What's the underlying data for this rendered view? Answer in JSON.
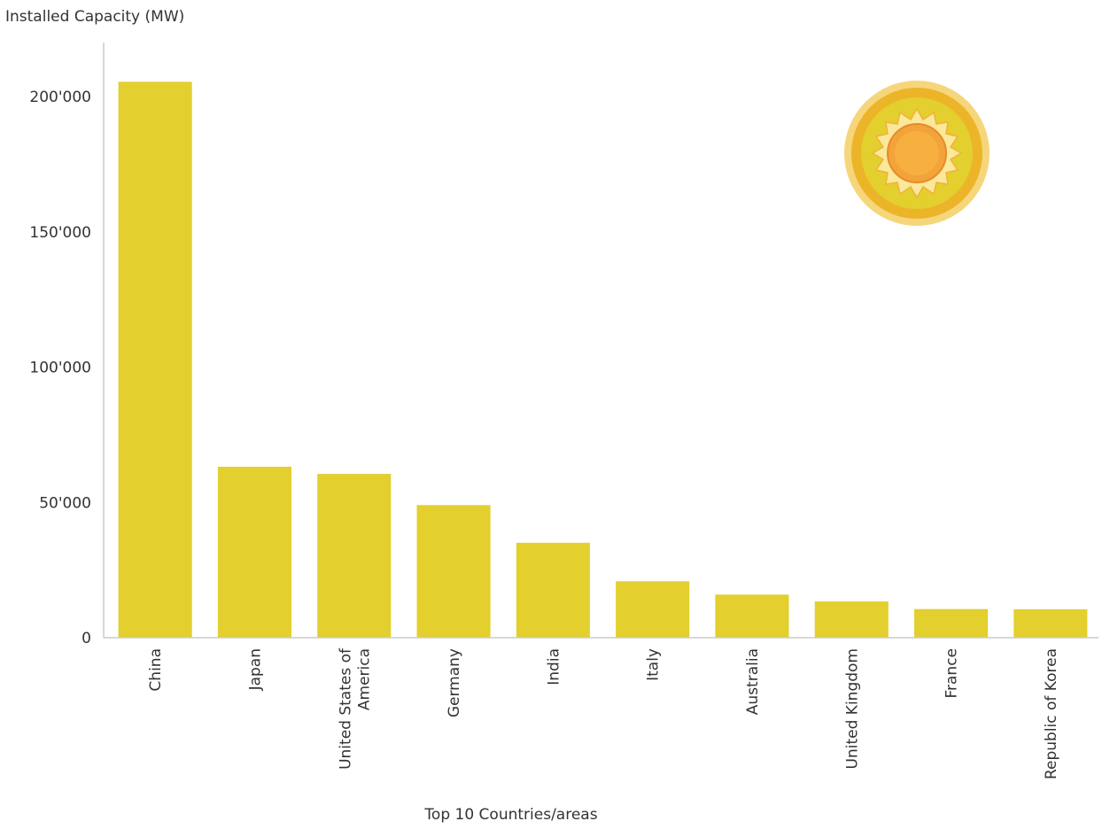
{
  "chart_data": {
    "type": "bar",
    "title": "",
    "ylabel": "Installed Capacity (MW)",
    "xlabel": "Top 10 Countries/areas",
    "categories": [
      [
        "China"
      ],
      [
        "Japan"
      ],
      [
        "United States of",
        "America"
      ],
      [
        "Germany"
      ],
      [
        "India"
      ],
      [
        "Italy"
      ],
      [
        "Australia"
      ],
      [
        "United Kingdom"
      ],
      [
        "France"
      ],
      [
        "Republic of Korea"
      ]
    ],
    "values": [
      205493,
      63192,
      60540,
      49016,
      35089,
      20865,
      15928,
      13398,
      10575,
      10505
    ],
    "ylim": [
      0,
      220000
    ],
    "yticks": [
      0,
      50000,
      100000,
      150000,
      200000
    ],
    "ytick_labels": [
      "0",
      "50'000",
      "100'000",
      "150'000",
      "200'000"
    ],
    "grid": false,
    "bar_color": "#e3cf2e",
    "axis_color": "#cccccc",
    "decoration": "sun-icon"
  }
}
